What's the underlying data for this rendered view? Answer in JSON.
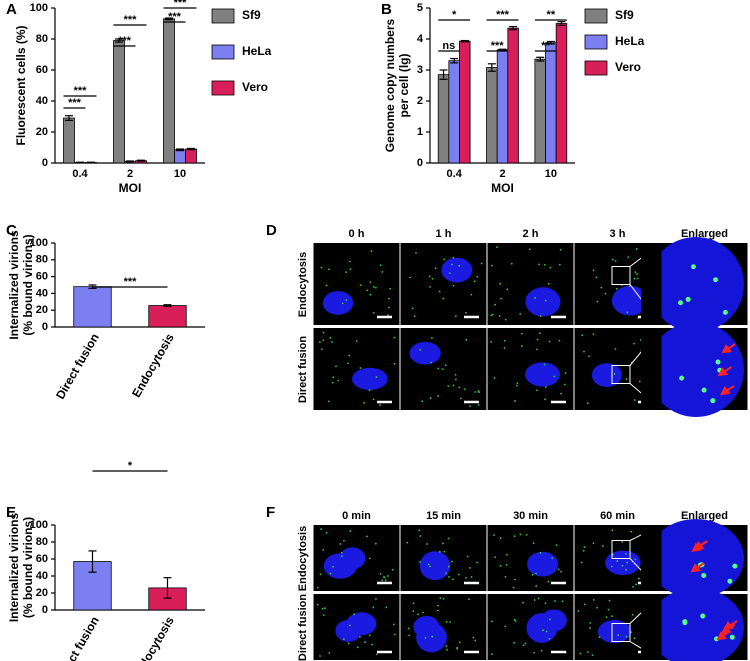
{
  "chart_data": [
    {
      "type": "bar",
      "label": "A",
      "ylabel": [
        "Fluorescent cells (%)"
      ],
      "xlabel": "MOI",
      "categories": [
        "0.4",
        "2",
        "10"
      ],
      "series": [
        {
          "name": "Sf9",
          "color": "#808080",
          "values": [
            29,
            79,
            93
          ],
          "errors": [
            1.5,
            1,
            0.5
          ]
        },
        {
          "name": "HeLa",
          "color": "#7b7ff0",
          "values": [
            0.3,
            1,
            8.5
          ],
          "errors": [
            0.2,
            0.3,
            0.5
          ]
        },
        {
          "name": "Vero",
          "color": "#d81e5b",
          "values": [
            0.3,
            1.5,
            9
          ],
          "errors": [
            0.2,
            0.3,
            0.4
          ]
        }
      ],
      "ylim": [
        0,
        100
      ],
      "yticks": [
        0,
        20,
        40,
        60,
        80,
        100
      ],
      "annotations": [
        "***",
        "***",
        "***",
        "***",
        "***",
        "***"
      ]
    },
    {
      "type": "bar",
      "label": "B",
      "ylabel": [
        "Genome copy numbers",
        "per cell (lg)"
      ],
      "xlabel": "MOI",
      "categories": [
        "0.4",
        "2",
        "10"
      ],
      "series": [
        {
          "name": "Sf9",
          "color": "#808080",
          "values": [
            2.85,
            3.08,
            3.35
          ],
          "errors": [
            0.15,
            0.12,
            0.06
          ]
        },
        {
          "name": "HeLa",
          "color": "#7b7ff0",
          "values": [
            3.3,
            3.65,
            3.88
          ],
          "errors": [
            0.07,
            0.02,
            0.04
          ]
        },
        {
          "name": "Vero",
          "color": "#d81e5b",
          "values": [
            3.93,
            4.35,
            4.5
          ],
          "errors": [
            0.02,
            0.05,
            0.06
          ]
        }
      ],
      "ylim": [
        0,
        5
      ],
      "yticks": [
        0,
        1,
        2,
        3,
        4,
        5
      ],
      "annotations": [
        "*",
        "ns",
        "***",
        "***",
        "**",
        "**"
      ]
    },
    {
      "type": "bar",
      "label": "C",
      "ylabel": [
        "Internalized virions",
        "(% bound virions)"
      ],
      "categories": [
        "Direct fusion",
        "Endocytosis"
      ],
      "values": [
        48,
        25.5
      ],
      "errors": [
        2,
        1
      ],
      "colors": [
        "#7b7ff0",
        "#d81e5b"
      ],
      "ylim": [
        0,
        100
      ],
      "yticks": [
        0,
        20,
        40,
        60,
        80,
        100
      ],
      "annotations": [
        "***"
      ]
    },
    {
      "type": "bar",
      "label": "E",
      "ylabel": [
        "Internalized virions",
        "(% bound virions)"
      ],
      "categories": [
        "Direct fusion",
        "Endocytosis"
      ],
      "values": [
        57,
        26
      ],
      "errors": [
        12.5,
        12
      ],
      "colors": [
        "#7b7ff0",
        "#d81e5b"
      ],
      "ylim": [
        0,
        100
      ],
      "yticks": [
        0,
        20,
        40,
        60,
        80,
        100
      ],
      "annotations": [
        "*"
      ]
    }
  ],
  "image_panels": [
    {
      "label": "D",
      "columns": [
        "0 h",
        "1 h",
        "2 h",
        "3 h",
        "Enlarged"
      ],
      "rows": [
        "Endocytosis",
        "Direct fusion"
      ]
    },
    {
      "label": "F",
      "columns": [
        "0 min",
        "15 min",
        "30 min",
        "60 min",
        "Enlarged"
      ],
      "rows": [
        "Endocytosis",
        "Direct fusion"
      ]
    }
  ]
}
